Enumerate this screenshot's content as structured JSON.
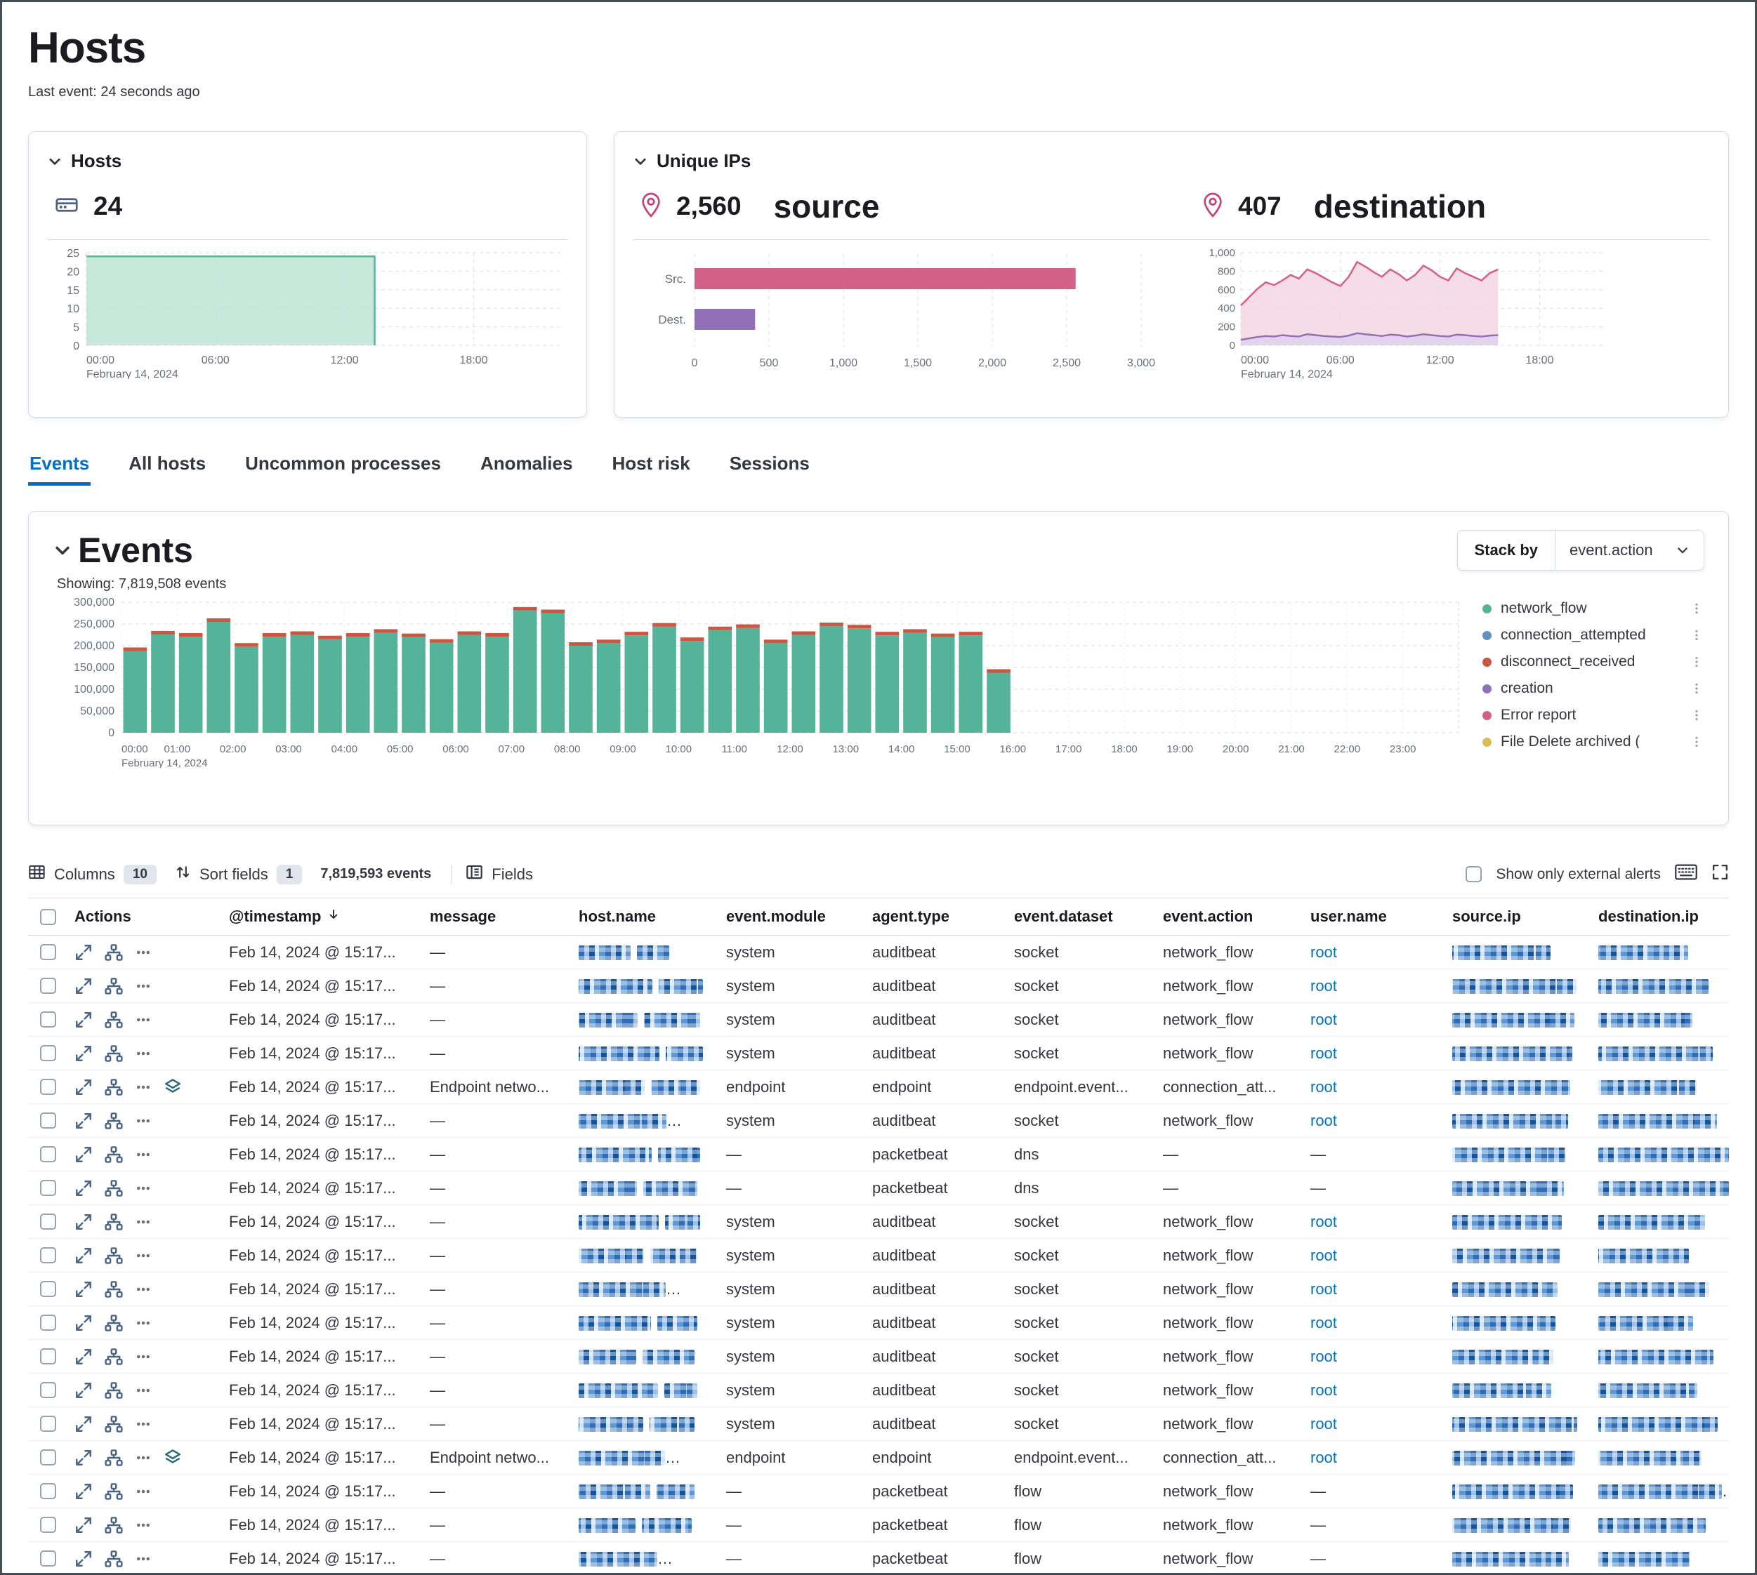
{
  "page": {
    "title": "Hosts",
    "last_event": "Last event: 24 seconds ago"
  },
  "hosts_panel": {
    "title": "Hosts",
    "count": "24"
  },
  "unique_ips_panel": {
    "title": "Unique IPs",
    "source_count": "2,560",
    "source_label": "source",
    "destination_count": "407",
    "destination_label": "destination"
  },
  "tabs": [
    {
      "label": "Events",
      "active": true
    },
    {
      "label": "All hosts"
    },
    {
      "label": "Uncommon processes"
    },
    {
      "label": "Anomalies"
    },
    {
      "label": "Host risk"
    },
    {
      "label": "Sessions"
    }
  ],
  "events_panel": {
    "title": "Events",
    "showing": "Showing: 7,819,508 events",
    "stack_by_label": "Stack by",
    "stack_by_value": "event.action",
    "legend": [
      {
        "label": "network_flow",
        "color": "#54b399"
      },
      {
        "label": "connection_attempted",
        "color": "#6092c0"
      },
      {
        "label": "disconnect_received",
        "color": "#cc5642"
      },
      {
        "label": "creation",
        "color": "#9170b8"
      },
      {
        "label": "Error report",
        "color": "#d36086"
      },
      {
        "label": "File Delete archived (",
        "color": "#d6bf57"
      }
    ]
  },
  "chart_data": [
    {
      "id": "hosts_over_time",
      "type": "area",
      "title": "Hosts over time",
      "domain_hours": 22,
      "x_tick_hours": [
        0,
        6,
        12,
        18
      ],
      "x_tick_labels": [
        "00:00",
        "06:00",
        "12:00",
        "18:00"
      ],
      "x_caption": "February 14, 2024",
      "ylim": [
        0,
        25
      ],
      "y_ticks": [
        0,
        5,
        10,
        15,
        20,
        25
      ],
      "series": [
        {
          "name": "hosts",
          "color": "#54b399",
          "fill": "#b9e2d2",
          "value": 24,
          "start_hour": 0,
          "end_hour": 13.4
        }
      ]
    },
    {
      "id": "unique_ips_bar",
      "type": "bar-horizontal",
      "title": "Unique source and destination IPs",
      "categories": [
        "Src.",
        "Dest."
      ],
      "values": [
        2560,
        407
      ],
      "colors": [
        "#d36086",
        "#9170b8"
      ],
      "xlim": [
        0,
        3000
      ],
      "x_ticks": [
        0,
        500,
        1000,
        1500,
        2000,
        2500,
        3000
      ],
      "x_tick_labels": [
        "0",
        "500",
        "1,000",
        "1,500",
        "2,000",
        "2,500",
        "3,000"
      ]
    },
    {
      "id": "unique_ips_over_time",
      "type": "area",
      "title": "Unique IPs over time",
      "domain_hours": 22,
      "point_interval_hours": 0.5,
      "x_tick_hours": [
        0,
        6,
        12,
        18
      ],
      "x_tick_labels": [
        "00:00",
        "06:00",
        "12:00",
        "18:00"
      ],
      "x_caption": "February 14, 2024",
      "ylim": [
        0,
        1000
      ],
      "y_ticks": [
        0,
        200,
        400,
        600,
        800,
        1000
      ],
      "y_tick_labels": [
        "0",
        "200",
        "400",
        "600",
        "800",
        "1,000"
      ],
      "series": [
        {
          "name": "source",
          "color": "#d36086",
          "fill": "#f3d3e0",
          "values": [
            430,
            520,
            610,
            680,
            650,
            700,
            760,
            720,
            820,
            780,
            730,
            680,
            640,
            740,
            900,
            850,
            790,
            740,
            820,
            770,
            700,
            760,
            860,
            810,
            740,
            700,
            830,
            780,
            740,
            700,
            780,
            820
          ]
        },
        {
          "name": "destination",
          "color": "#9170b8",
          "fill": "#ddd3ec",
          "values": [
            60,
            75,
            90,
            100,
            95,
            110,
            100,
            95,
            120,
            110,
            100,
            95,
            90,
            105,
            130,
            120,
            110,
            100,
            115,
            110,
            95,
            105,
            120,
            110,
            100,
            95,
            115,
            110,
            100,
            95,
            105,
            110
          ]
        }
      ]
    },
    {
      "id": "events_histogram",
      "type": "bar",
      "title": "Events stacked by event.action",
      "stack_by": "event.action",
      "domain_hours": 24,
      "bar_interval_hours": 0.5,
      "x_tick_labels": [
        "00:00",
        "01:00",
        "02:00",
        "03:00",
        "04:00",
        "05:00",
        "06:00",
        "07:00",
        "08:00",
        "09:00",
        "10:00",
        "11:00",
        "12:00",
        "13:00",
        "14:00",
        "15:00",
        "16:00",
        "17:00",
        "18:00",
        "19:00",
        "20:00",
        "21:00",
        "22:00",
        "23:00"
      ],
      "x_caption": "February 14, 2024",
      "ylim": [
        0,
        300000
      ],
      "y_ticks": [
        0,
        50000,
        100000,
        150000,
        200000,
        250000,
        300000
      ],
      "y_tick_labels": [
        "0",
        "50,000",
        "100,000",
        "150,000",
        "200,000",
        "250,000",
        "300,000"
      ],
      "primary_series": "network_flow",
      "primary_color": "#54b399",
      "cap_color": "#cc5642",
      "values": [
        196000,
        234000,
        229000,
        263000,
        206000,
        229000,
        233000,
        223000,
        229000,
        238000,
        228000,
        215000,
        233000,
        229000,
        289000,
        283000,
        208000,
        214000,
        232000,
        252000,
        219000,
        244000,
        249000,
        214000,
        233000,
        253000,
        248000,
        232000,
        238000,
        228000,
        232000,
        146000
      ]
    }
  ],
  "toolbar": {
    "columns_label": "Columns",
    "columns_count": "10",
    "sort_label": "Sort fields",
    "sort_count": "1",
    "events_count": "7,819,593 events",
    "fields_label": "Fields",
    "external_alerts_label": "Show only external alerts"
  },
  "table": {
    "headers": [
      "Actions",
      "@timestamp",
      "message",
      "host.name",
      "event.module",
      "agent.type",
      "event.dataset",
      "event.action",
      "user.name",
      "source.ip",
      "destination.ip"
    ],
    "sort": {
      "column": "@timestamp",
      "direction": "descending"
    },
    "redacted_columns": [
      "host.name",
      "source.ip",
      "destination.ip"
    ],
    "rows": [
      {
        "timestamp": "Feb 14, 2024 @ 15:17...",
        "message": "—",
        "event_module": "system",
        "agent_type": "auditbeat",
        "event_dataset": "socket",
        "event_action": "network_flow",
        "user_name": "root",
        "endpoint": false
      },
      {
        "timestamp": "Feb 14, 2024 @ 15:17...",
        "message": "—",
        "event_module": "system",
        "agent_type": "auditbeat",
        "event_dataset": "socket",
        "event_action": "network_flow",
        "user_name": "root",
        "endpoint": false
      },
      {
        "timestamp": "Feb 14, 2024 @ 15:17...",
        "message": "—",
        "event_module": "system",
        "agent_type": "auditbeat",
        "event_dataset": "socket",
        "event_action": "network_flow",
        "user_name": "root",
        "endpoint": false
      },
      {
        "timestamp": "Feb 14, 2024 @ 15:17...",
        "message": "—",
        "event_module": "system",
        "agent_type": "auditbeat",
        "event_dataset": "socket",
        "event_action": "network_flow",
        "user_name": "root",
        "endpoint": false
      },
      {
        "timestamp": "Feb 14, 2024 @ 15:17...",
        "message": "Endpoint netwo...",
        "event_module": "endpoint",
        "agent_type": "endpoint",
        "event_dataset": "endpoint.event...",
        "event_action": "connection_att...",
        "user_name": "root",
        "endpoint": true
      },
      {
        "timestamp": "Feb 14, 2024 @ 15:17...",
        "message": "—",
        "event_module": "system",
        "agent_type": "auditbeat",
        "event_dataset": "socket",
        "event_action": "network_flow",
        "user_name": "root",
        "endpoint": false
      },
      {
        "timestamp": "Feb 14, 2024 @ 15:17...",
        "message": "—",
        "event_module": "—",
        "agent_type": "packetbeat",
        "event_dataset": "dns",
        "event_action": "—",
        "user_name": "—",
        "endpoint": false
      },
      {
        "timestamp": "Feb 14, 2024 @ 15:17...",
        "message": "—",
        "event_module": "—",
        "agent_type": "packetbeat",
        "event_dataset": "dns",
        "event_action": "—",
        "user_name": "—",
        "endpoint": false
      },
      {
        "timestamp": "Feb 14, 2024 @ 15:17...",
        "message": "—",
        "event_module": "system",
        "agent_type": "auditbeat",
        "event_dataset": "socket",
        "event_action": "network_flow",
        "user_name": "root",
        "endpoint": false
      },
      {
        "timestamp": "Feb 14, 2024 @ 15:17...",
        "message": "—",
        "event_module": "system",
        "agent_type": "auditbeat",
        "event_dataset": "socket",
        "event_action": "network_flow",
        "user_name": "root",
        "endpoint": false
      },
      {
        "timestamp": "Feb 14, 2024 @ 15:17...",
        "message": "—",
        "event_module": "system",
        "agent_type": "auditbeat",
        "event_dataset": "socket",
        "event_action": "network_flow",
        "user_name": "root",
        "endpoint": false
      },
      {
        "timestamp": "Feb 14, 2024 @ 15:17...",
        "message": "—",
        "event_module": "system",
        "agent_type": "auditbeat",
        "event_dataset": "socket",
        "event_action": "network_flow",
        "user_name": "root",
        "endpoint": false
      },
      {
        "timestamp": "Feb 14, 2024 @ 15:17...",
        "message": "—",
        "event_module": "system",
        "agent_type": "auditbeat",
        "event_dataset": "socket",
        "event_action": "network_flow",
        "user_name": "root",
        "endpoint": false
      },
      {
        "timestamp": "Feb 14, 2024 @ 15:17...",
        "message": "—",
        "event_module": "system",
        "agent_type": "auditbeat",
        "event_dataset": "socket",
        "event_action": "network_flow",
        "user_name": "root",
        "endpoint": false
      },
      {
        "timestamp": "Feb 14, 2024 @ 15:17...",
        "message": "—",
        "event_module": "system",
        "agent_type": "auditbeat",
        "event_dataset": "socket",
        "event_action": "network_flow",
        "user_name": "root",
        "endpoint": false
      },
      {
        "timestamp": "Feb 14, 2024 @ 15:17...",
        "message": "Endpoint netwo...",
        "event_module": "endpoint",
        "agent_type": "endpoint",
        "event_dataset": "endpoint.event...",
        "event_action": "connection_att...",
        "user_name": "root",
        "endpoint": true
      },
      {
        "timestamp": "Feb 14, 2024 @ 15:17...",
        "message": "—",
        "event_module": "—",
        "agent_type": "packetbeat",
        "event_dataset": "flow",
        "event_action": "network_flow",
        "user_name": "—",
        "endpoint": false
      },
      {
        "timestamp": "Feb 14, 2024 @ 15:17...",
        "message": "—",
        "event_module": "—",
        "agent_type": "packetbeat",
        "event_dataset": "flow",
        "event_action": "network_flow",
        "user_name": "—",
        "endpoint": false
      },
      {
        "timestamp": "Feb 14, 2024 @ 15:17...",
        "message": "—",
        "event_module": "—",
        "agent_type": "packetbeat",
        "event_dataset": "flow",
        "event_action": "network_flow",
        "user_name": "—",
        "endpoint": false
      }
    ]
  }
}
